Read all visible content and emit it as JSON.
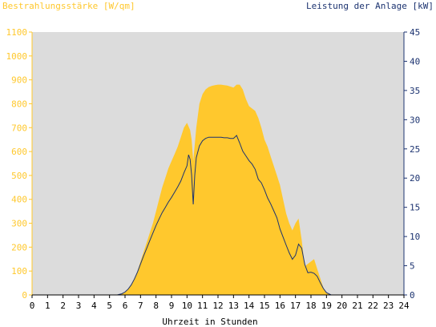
{
  "chart_data": {
    "type": "area",
    "left_axis_title": "Bestrahlungsstärke [W/qm]",
    "right_axis_title": "Leistung der Anlage [kW]",
    "xlabel": "Uhrzeit in Stunden",
    "x_ticks": [
      "0",
      "1",
      "2",
      "3",
      "4",
      "5",
      "6",
      "7",
      "8",
      "9",
      "10",
      "11",
      "12",
      "13",
      "14",
      "15",
      "16",
      "17",
      "18",
      "19",
      "20",
      "21",
      "22",
      "23",
      "24"
    ],
    "y_left_ticks": [
      "0",
      "100",
      "200",
      "300",
      "400",
      "500",
      "600",
      "700",
      "800",
      "900",
      "1000",
      "1100"
    ],
    "y_right_ticks": [
      "0",
      "5",
      "10",
      "15",
      "20",
      "25",
      "30",
      "35",
      "40",
      "45"
    ],
    "xlim": [
      0,
      24
    ],
    "ylim_left": [
      0,
      1100
    ],
    "ylim_right": [
      0,
      45
    ],
    "grid": false,
    "colors": {
      "left_axis": "#ffc82d",
      "right_axis": "#1c3370",
      "irradiance_fill": "#ffc82d",
      "power_line": "#1c3370",
      "plot_background": "#dcdcdc"
    },
    "series": [
      {
        "axis": "left",
        "kind": "area",
        "x": [
          0,
          5.5,
          5.8,
          6.0,
          6.2,
          6.4,
          6.6,
          6.8,
          7.0,
          7.2,
          7.4,
          7.6,
          7.8,
          8.0,
          8.2,
          8.4,
          8.6,
          8.8,
          9.0,
          9.2,
          9.4,
          9.6,
          9.8,
          10.0,
          10.2,
          10.3,
          10.4,
          10.6,
          10.8,
          11.0,
          11.2,
          11.4,
          11.6,
          11.8,
          12.0,
          12.2,
          12.4,
          12.6,
          12.8,
          13.0,
          13.2,
          13.4,
          13.6,
          13.8,
          14.0,
          14.2,
          14.4,
          14.6,
          14.8,
          15.0,
          15.2,
          15.4,
          15.6,
          15.8,
          16.0,
          16.2,
          16.4,
          16.6,
          16.8,
          17.0,
          17.2,
          17.4,
          17.6,
          17.8,
          18.0,
          18.2,
          18.4,
          18.6,
          18.8,
          19.0,
          19.3,
          24
        ],
        "y": [
          0,
          0,
          5,
          12,
          25,
          45,
          70,
          100,
          140,
          180,
          220,
          260,
          300,
          350,
          400,
          450,
          490,
          530,
          560,
          590,
          620,
          660,
          700,
          720,
          690,
          650,
          560,
          700,
          800,
          840,
          860,
          870,
          875,
          878,
          880,
          880,
          878,
          876,
          872,
          868,
          880,
          880,
          860,
          820,
          790,
          780,
          770,
          740,
          700,
          650,
          620,
          580,
          540,
          500,
          460,
          400,
          340,
          300,
          270,
          300,
          320,
          230,
          120,
          130,
          140,
          150,
          110,
          70,
          30,
          10,
          0,
          0
        ]
      },
      {
        "axis": "right",
        "kind": "line",
        "x": [
          0,
          5.5,
          5.8,
          6.0,
          6.2,
          6.4,
          6.6,
          6.8,
          7.0,
          7.2,
          7.4,
          7.6,
          7.8,
          8.0,
          8.2,
          8.4,
          8.6,
          8.8,
          9.0,
          9.2,
          9.4,
          9.6,
          9.8,
          10.0,
          10.1,
          10.2,
          10.3,
          10.4,
          10.5,
          10.6,
          10.8,
          11.0,
          11.2,
          11.4,
          11.6,
          11.8,
          12.0,
          12.2,
          12.4,
          12.6,
          12.8,
          13.0,
          13.2,
          13.4,
          13.6,
          13.8,
          14.0,
          14.2,
          14.4,
          14.6,
          14.8,
          15.0,
          15.2,
          15.4,
          15.6,
          15.8,
          16.0,
          16.2,
          16.4,
          16.6,
          16.8,
          17.0,
          17.2,
          17.4,
          17.6,
          17.8,
          18.0,
          18.2,
          18.4,
          18.6,
          18.8,
          19.0,
          19.3,
          24
        ],
        "y": [
          0,
          0,
          0.2,
          0.5,
          1.0,
          1.7,
          2.7,
          3.9,
          5.3,
          6.7,
          8.0,
          9.3,
          10.6,
          11.9,
          13.0,
          14.1,
          15.0,
          15.9,
          16.7,
          17.6,
          18.5,
          19.5,
          20.9,
          22.1,
          24.0,
          23.2,
          20.5,
          15.5,
          20.5,
          23.5,
          25.5,
          26.4,
          26.8,
          27.0,
          27.0,
          27.0,
          27.0,
          27.0,
          26.9,
          26.9,
          26.8,
          26.8,
          27.3,
          26.0,
          24.6,
          23.8,
          23.0,
          22.4,
          21.5,
          19.8,
          19.2,
          18.0,
          16.6,
          15.6,
          14.4,
          13.2,
          11.3,
          9.9,
          8.5,
          7.2,
          6.1,
          6.8,
          8.7,
          8.0,
          5.2,
          3.8,
          3.9,
          3.7,
          3.2,
          2.1,
          1.1,
          0.4,
          0,
          0
        ]
      }
    ]
  }
}
